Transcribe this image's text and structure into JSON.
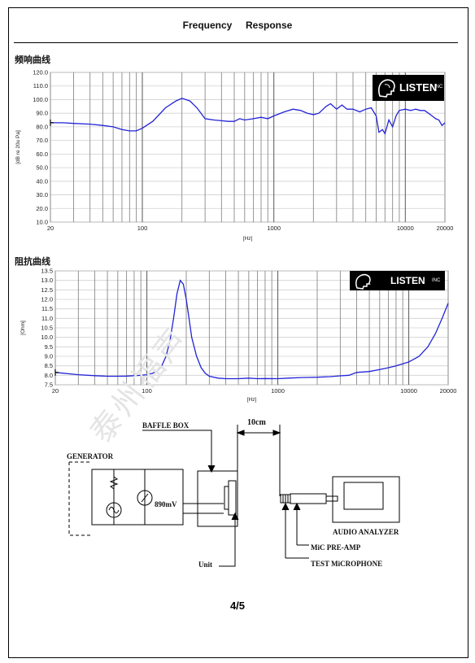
{
  "header": {
    "title": "Frequency     Response"
  },
  "sections": {
    "frequency": "频响曲线",
    "impedance": "阻抗曲线"
  },
  "logo": {
    "brand": "LISTEN",
    "suffix": "INC",
    "icon": "head-profile-icon"
  },
  "watermark": "泰州福声",
  "page": {
    "number": "4/5"
  },
  "diagram": {
    "baffle_box": "BAFFLE BOX",
    "distance": "10cm",
    "generator": "GENERATOR",
    "voltage": "890mV",
    "unit": "Unit",
    "audio_analyzer": "AUDIO ANALYZER",
    "mic_preamp": "MiC PRE-AMP",
    "test_microphone": "TEST MiCROPHONE"
  },
  "chart_data": [
    {
      "type": "line",
      "title": "频响曲线",
      "xlabel": "[Hz]",
      "ylabel": "[dB re 20u Pa]",
      "xscale": "log",
      "xlim": [
        20,
        20000
      ],
      "ylim": [
        10,
        120
      ],
      "x_ticks": [
        "20",
        "100",
        "1000",
        "10000",
        "20000"
      ],
      "y_ticks": [
        "120.0",
        "110.0",
        "100.0",
        "90.0",
        "80.0",
        "70.0",
        "60.0",
        "50.0",
        "40.0",
        "30.0",
        "20.0",
        "10.0"
      ],
      "series": [
        {
          "color": "#2323d8",
          "x": [
            20,
            25,
            30,
            40,
            50,
            60,
            70,
            80,
            90,
            100,
            120,
            150,
            180,
            200,
            230,
            260,
            300,
            350,
            400,
            450,
            500,
            550,
            600,
            700,
            800,
            900,
            1000,
            1200,
            1400,
            1600,
            1800,
            2000,
            2200,
            2500,
            2700,
            3000,
            3300,
            3600,
            4000,
            4500,
            5000,
            5500,
            6000,
            6300,
            6700,
            7000,
            7500,
            8000,
            8500,
            9000,
            10000,
            11000,
            12000,
            13000,
            14000,
            15000,
            16000,
            17000,
            18000,
            19000,
            20000
          ],
          "values": [
            83,
            83,
            82.5,
            82,
            81,
            80,
            78,
            77,
            77,
            79,
            84,
            94,
            99,
            101,
            99,
            94,
            86,
            85,
            84.5,
            84,
            84,
            86,
            85,
            86,
            87,
            86,
            88,
            91,
            93,
            92,
            90,
            89,
            90,
            95,
            97,
            93,
            96,
            93,
            93,
            91,
            93,
            94,
            88,
            76,
            78,
            75,
            85,
            80,
            88,
            92,
            93,
            92,
            93,
            92,
            92,
            90,
            88,
            86,
            85,
            81,
            83
          ]
        }
      ]
    },
    {
      "type": "line",
      "title": "阻抗曲线",
      "xlabel": "[Hz]",
      "ylabel": "[Ohm]",
      "xscale": "log",
      "xlim": [
        20,
        20000
      ],
      "ylim": [
        7.5,
        13.5
      ],
      "x_ticks": [
        "20",
        "100",
        "1000",
        "10000",
        "20000"
      ],
      "y_ticks": [
        "13.5",
        "13.0",
        "12.5",
        "12.0",
        "11.5",
        "11.0",
        "10.5",
        "10.0",
        "9.5",
        "9.0",
        "8.5",
        "8.0",
        "7.5"
      ],
      "series": [
        {
          "color": "#2323d8",
          "x": [
            20,
            30,
            40,
            50,
            60,
            70,
            80,
            90,
            100,
            110,
            120,
            130,
            140,
            150,
            160,
            170,
            180,
            190,
            200,
            210,
            220,
            240,
            260,
            280,
            300,
            350,
            400,
            500,
            600,
            700,
            800,
            1000,
            1200,
            1500,
            2000,
            2500,
            3000,
            3500,
            4000,
            5000,
            6000,
            7000,
            8000,
            10000,
            12000,
            14000,
            16000,
            18000,
            20000
          ],
          "values": [
            8.15,
            8.03,
            7.98,
            7.95,
            7.95,
            7.96,
            7.98,
            8.0,
            8.03,
            8.1,
            8.22,
            8.5,
            9.0,
            9.8,
            11.0,
            12.3,
            13.0,
            12.8,
            12.0,
            11.0,
            10.0,
            9.0,
            8.4,
            8.1,
            7.95,
            7.85,
            7.82,
            7.82,
            7.85,
            7.82,
            7.83,
            7.82,
            7.85,
            7.88,
            7.9,
            7.93,
            7.97,
            8.0,
            8.15,
            8.2,
            8.3,
            8.4,
            8.5,
            8.7,
            9.0,
            9.5,
            10.2,
            11.0,
            11.8
          ]
        }
      ]
    }
  ]
}
